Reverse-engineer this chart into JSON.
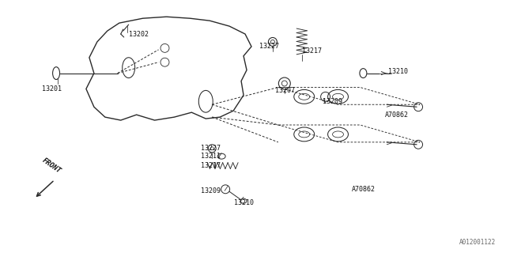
{
  "bg_color": "#ffffff",
  "line_color": "#2a2a2a",
  "text_color": "#111111",
  "fig_width": 6.4,
  "fig_height": 3.2,
  "dpi": 100,
  "watermark": "A012001122",
  "front_label": "FRONT"
}
